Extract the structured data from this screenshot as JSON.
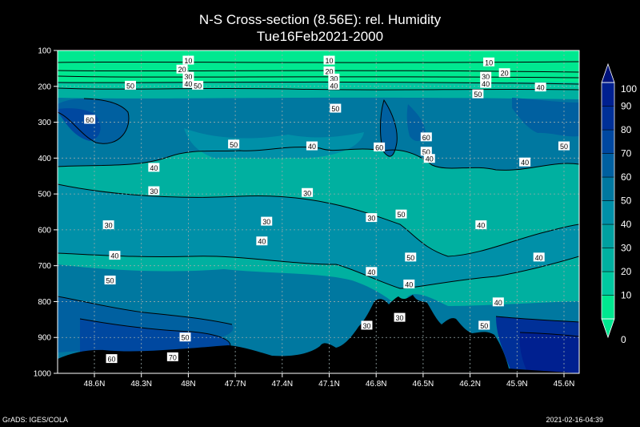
{
  "chart_data": {
    "type": "contour-cross-section",
    "title": "N-S Cross-section (8.56E): rel. Humidity",
    "subtitle": "Tue16Feb2021-2000",
    "y_axis": {
      "ticks": [
        100,
        200,
        300,
        400,
        500,
        600,
        700,
        800,
        900,
        1000
      ],
      "range": [
        100,
        1000
      ],
      "orientation": "pressure-inverted"
    },
    "x_axis": {
      "ticks": [
        "48.6N",
        "48.3N",
        "48N",
        "47.7N",
        "47.4N",
        "47.1N",
        "46.8N",
        "46.5N",
        "46.2N",
        "45.9N",
        "45.6N"
      ]
    },
    "colorbar": {
      "levels": [
        0,
        10,
        20,
        30,
        40,
        50,
        60,
        70,
        80,
        90,
        100
      ],
      "colors": [
        "#00e890",
        "#00c8a0",
        "#00b0a0",
        "#00a0a0",
        "#0090a8",
        "#0078a0",
        "#0060a0",
        "#0048a0",
        "#003098",
        "#002090"
      ]
    },
    "contour_labels": [
      {
        "text": "10",
        "lat": 48.0,
        "p": 128
      },
      {
        "text": "10",
        "lat": 47.1,
        "p": 128
      },
      {
        "text": "10",
        "lat": 46.08,
        "p": 133
      },
      {
        "text": "20",
        "lat": 48.04,
        "p": 153
      },
      {
        "text": "20",
        "lat": 47.1,
        "p": 158
      },
      {
        "text": "20",
        "lat": 45.98,
        "p": 163
      },
      {
        "text": "30",
        "lat": 48.0,
        "p": 173
      },
      {
        "text": "30",
        "lat": 47.07,
        "p": 178
      },
      {
        "text": "30",
        "lat": 46.1,
        "p": 173
      },
      {
        "text": "40",
        "lat": 48.0,
        "p": 193
      },
      {
        "text": "40",
        "lat": 47.07,
        "p": 198
      },
      {
        "text": "40",
        "lat": 46.1,
        "p": 193
      },
      {
        "text": "40",
        "lat": 45.75,
        "p": 203
      },
      {
        "text": "50",
        "lat": 48.37,
        "p": 198
      },
      {
        "text": "50",
        "lat": 47.94,
        "p": 198
      },
      {
        "text": "50",
        "lat": 47.06,
        "p": 262
      },
      {
        "text": "50",
        "lat": 46.15,
        "p": 222
      },
      {
        "text": "60",
        "lat": 48.63,
        "p": 293
      },
      {
        "text": "60",
        "lat": 46.78,
        "p": 370
      },
      {
        "text": "60",
        "lat": 46.48,
        "p": 342
      },
      {
        "text": "50",
        "lat": 46.48,
        "p": 382
      },
      {
        "text": "40",
        "lat": 46.46,
        "p": 402
      },
      {
        "text": "50",
        "lat": 47.71,
        "p": 362
      },
      {
        "text": "40",
        "lat": 47.21,
        "p": 367
      },
      {
        "text": "50",
        "lat": 45.6,
        "p": 367
      },
      {
        "text": "40",
        "lat": 45.85,
        "p": 412
      },
      {
        "text": "40",
        "lat": 48.22,
        "p": 427
      },
      {
        "text": "30",
        "lat": 48.22,
        "p": 492
      },
      {
        "text": "30",
        "lat": 47.24,
        "p": 497
      },
      {
        "text": "30",
        "lat": 46.83,
        "p": 567
      },
      {
        "text": "50",
        "lat": 46.64,
        "p": 557
      },
      {
        "text": "40",
        "lat": 46.13,
        "p": 587
      },
      {
        "text": "30",
        "lat": 48.51,
        "p": 587
      },
      {
        "text": "30",
        "lat": 47.5,
        "p": 577
      },
      {
        "text": "40",
        "lat": 47.53,
        "p": 632
      },
      {
        "text": "40",
        "lat": 48.47,
        "p": 672
      },
      {
        "text": "50",
        "lat": 46.58,
        "p": 677
      },
      {
        "text": "40",
        "lat": 46.83,
        "p": 717
      },
      {
        "text": "40",
        "lat": 45.76,
        "p": 677
      },
      {
        "text": "50",
        "lat": 48.5,
        "p": 741
      },
      {
        "text": "40",
        "lat": 46.59,
        "p": 752
      },
      {
        "text": "40",
        "lat": 46.02,
        "p": 802
      },
      {
        "text": "30",
        "lat": 46.86,
        "p": 867
      },
      {
        "text": "30",
        "lat": 46.65,
        "p": 845
      },
      {
        "text": "50",
        "lat": 46.11,
        "p": 867
      },
      {
        "text": "50",
        "lat": 48.02,
        "p": 900
      },
      {
        "text": "60",
        "lat": 48.49,
        "p": 960
      },
      {
        "text": "70",
        "lat": 48.1,
        "p": 955
      }
    ],
    "grid": true
  },
  "footer": {
    "left": "GrADS: IGES/COLA",
    "right": "2021-02-16-04:39"
  }
}
